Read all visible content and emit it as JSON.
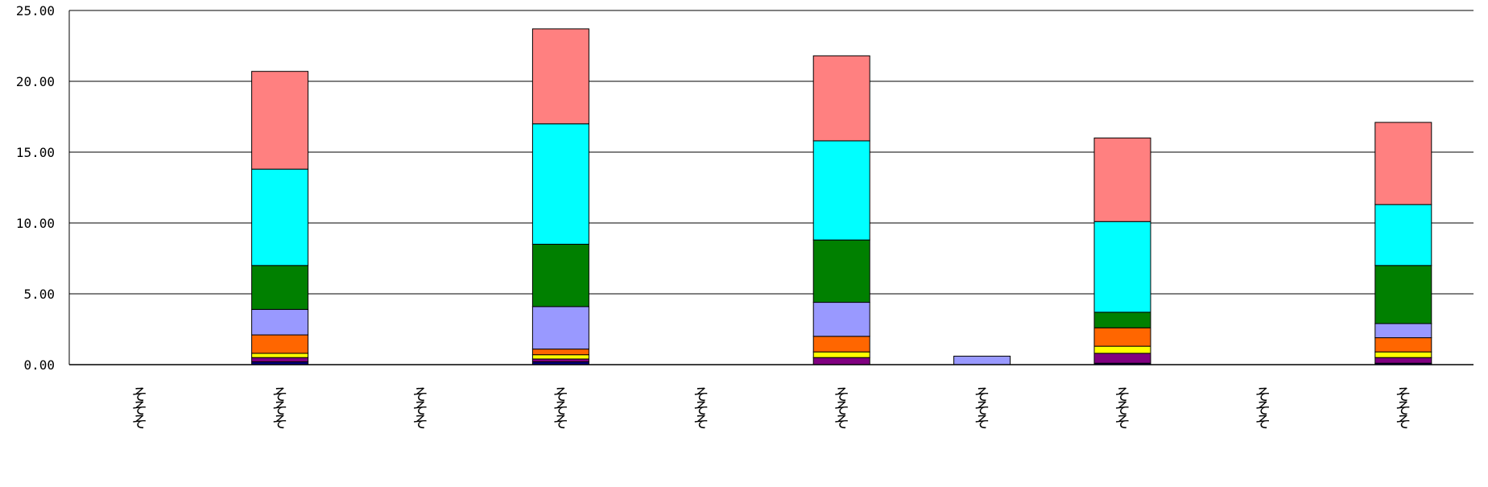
{
  "chart_data": {
    "type": "bar",
    "stacked": true,
    "title": "",
    "xlabel": "",
    "ylabel": "",
    "ylim": [
      0,
      25
    ],
    "yticks": [
      "0.00",
      "5.00",
      "10.00",
      "15.00",
      "20.00",
      "25.00"
    ],
    "ytick_values": [
      0,
      5,
      10,
      15,
      20,
      25
    ],
    "grid": true,
    "legend": "none",
    "categories": [
      "そそそ",
      "そそそ",
      "そそそ",
      "そそそ",
      "そそそ",
      "そそそ",
      "そそそ",
      "そそそ",
      "そそそ",
      "そそそ"
    ],
    "series": [
      {
        "color": "#000080",
        "values": [
          0,
          0.2,
          0,
          0.2,
          0,
          0,
          0,
          0.1,
          0,
          0.1
        ]
      },
      {
        "color": "#800080",
        "values": [
          0,
          0.3,
          0,
          0.2,
          0,
          0.5,
          0,
          0.7,
          0,
          0.4
        ]
      },
      {
        "color": "#FFFF00",
        "values": [
          0,
          0.3,
          0,
          0.3,
          0,
          0.4,
          0,
          0.5,
          0,
          0.4
        ]
      },
      {
        "color": "#FF6600",
        "values": [
          0,
          1.3,
          0,
          0.4,
          0,
          1.1,
          0,
          1.3,
          0,
          1.0
        ]
      },
      {
        "color": "#9999FF",
        "values": [
          0,
          1.8,
          0,
          3.0,
          0,
          2.4,
          0.6,
          0,
          0,
          1.0
        ]
      },
      {
        "color": "#008000",
        "values": [
          0,
          3.1,
          0,
          4.4,
          0,
          4.4,
          0,
          1.1,
          0,
          4.1
        ]
      },
      {
        "color": "#00FFFF",
        "values": [
          0,
          6.8,
          0,
          8.5,
          0,
          7.0,
          0,
          6.4,
          0,
          4.3
        ]
      },
      {
        "color": "#FF8080",
        "values": [
          0,
          6.9,
          0,
          6.7,
          0,
          6.0,
          0,
          5.9,
          0,
          5.8
        ]
      }
    ]
  }
}
